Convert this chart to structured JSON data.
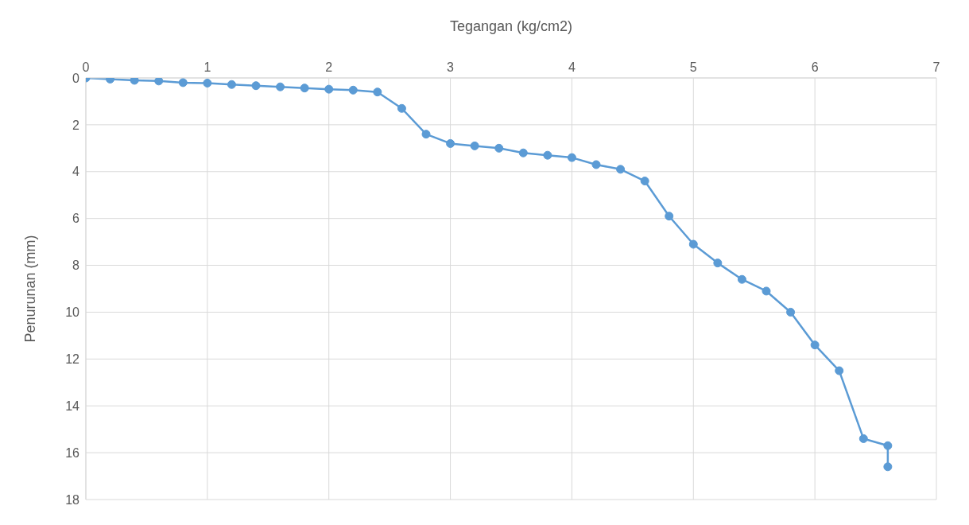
{
  "chart_data": {
    "type": "line",
    "xlabel": "Tegangan (kg/cm2)",
    "ylabel": "Penurunan (mm)",
    "xlim": [
      0,
      7
    ],
    "xticks": [
      0,
      1,
      2,
      3,
      4,
      5,
      6,
      7
    ],
    "ylim": [
      18,
      0
    ],
    "yticks": [
      0,
      2,
      4,
      6,
      8,
      10,
      12,
      14,
      16,
      18
    ],
    "grid": true,
    "marker": "circle",
    "line_style": "solid",
    "series": [
      {
        "color": "#5b9bd5",
        "x": [
          0,
          0.2,
          0.4,
          0.6,
          0.8,
          1.0,
          1.2,
          1.4,
          1.6,
          1.8,
          2.0,
          2.2,
          2.4,
          2.6,
          2.8,
          3.0,
          3.2,
          3.4,
          3.6,
          3.8,
          4.0,
          4.2,
          4.4,
          4.6,
          4.8,
          5.0,
          5.2,
          5.4,
          5.6,
          5.8,
          6.0,
          6.2,
          6.4,
          6.6,
          6.6
        ],
        "values": [
          0,
          0.05,
          0.1,
          0.13,
          0.2,
          0.22,
          0.28,
          0.33,
          0.38,
          0.43,
          0.48,
          0.52,
          0.6,
          1.3,
          2.4,
          2.8,
          2.9,
          3.0,
          3.2,
          3.3,
          3.4,
          3.7,
          3.9,
          4.4,
          5.9,
          7.1,
          7.9,
          8.6,
          9.1,
          10.0,
          11.4,
          12.5,
          15.4,
          15.7,
          16.6
        ]
      }
    ]
  }
}
